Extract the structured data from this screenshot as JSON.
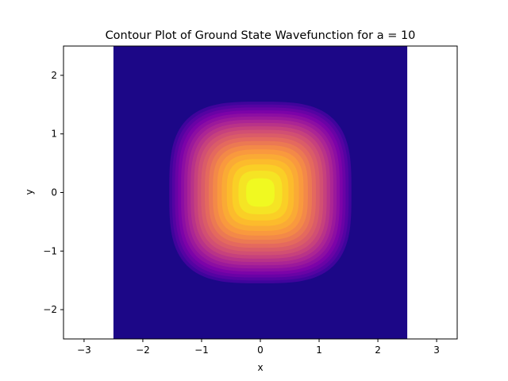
{
  "chart_data": {
    "type": "contour",
    "title": "Contour Plot of Ground State Wavefunction for a = 10",
    "xlabel": "x",
    "ylabel": "y",
    "xlim": [
      -3.35,
      3.35
    ],
    "ylim": [
      -2.5,
      2.5
    ],
    "xticks": [
      -3,
      -2,
      -1,
      0,
      1,
      2,
      3
    ],
    "yticks": [
      -2,
      -1,
      0,
      1,
      2
    ],
    "xtick_labels": [
      "−3",
      "−2",
      "−1",
      "0",
      "1",
      "2",
      "3"
    ],
    "ytick_labels": [
      "−2",
      "−1",
      "0",
      "1",
      "2"
    ],
    "data_extent": {
      "x": [
        -2.5,
        2.5
      ],
      "y": [
        -2.5,
        2.5
      ]
    },
    "colormap": "plasma",
    "levels": 20,
    "background_color": "#1c0787",
    "center": [
      0,
      0
    ],
    "outer_contour_half_width": 1.55,
    "contour_squareness_exponent": 3.2,
    "grid": false,
    "legend": "none"
  }
}
